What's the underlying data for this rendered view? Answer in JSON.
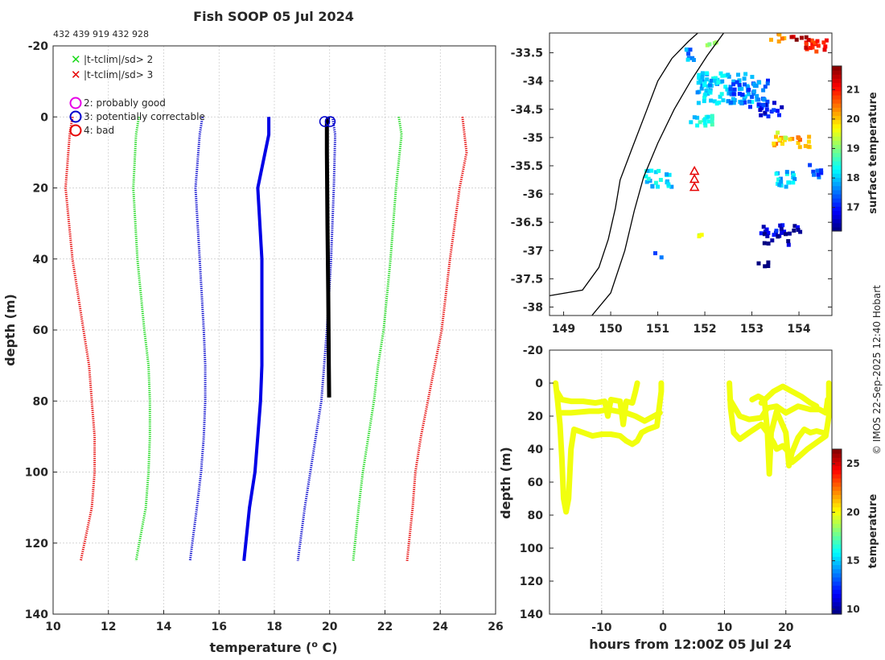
{
  "header": {
    "title": "Fish SOOP 05 Jul 2024",
    "ids": "432 439 919 432 928"
  },
  "credit": "© IMOS 22-Sep-2025 12:40 Hobart",
  "legend": {
    "flags": [
      {
        "label": "|t-tclim|/sd> 2",
        "color": "#19d919"
      },
      {
        "label": "|t-tclim|/sd> 3",
        "color": "#e60000"
      }
    ],
    "qc": [
      {
        "label": "2: probably good",
        "color": "#e600e6"
      },
      {
        "label": "3: potentially correctable",
        "color": "#0000cc"
      },
      {
        "label": "4: bad",
        "color": "#e60000"
      }
    ]
  },
  "chart_data": [
    {
      "type": "line",
      "name": "profile",
      "xlabel": "temperature (",
      "xlabel_sup": "o",
      "xlabel_tail": " C)",
      "ylabel": "depth (m)",
      "xlim": [
        10,
        26
      ],
      "ylim": [
        -20,
        140
      ],
      "xticks": [
        10,
        12,
        14,
        16,
        18,
        20,
        22,
        24,
        26
      ],
      "yticks": [
        -20,
        0,
        20,
        40,
        60,
        80,
        100,
        120,
        140
      ],
      "series": [
        {
          "name": "clim -3sd",
          "color": "#e60000",
          "style": "dotted",
          "depth": [
            0,
            5,
            20,
            40,
            60,
            70,
            80,
            90,
            100,
            110,
            125
          ],
          "temp": [
            10.7,
            10.6,
            10.45,
            10.7,
            11.1,
            11.3,
            11.4,
            11.5,
            11.5,
            11.4,
            11.0
          ]
        },
        {
          "name": "clim -2sd",
          "color": "#19d919",
          "style": "dotted",
          "depth": [
            0,
            5,
            20,
            40,
            60,
            70,
            80,
            90,
            100,
            110,
            125
          ],
          "temp": [
            13.1,
            13.0,
            12.9,
            13.05,
            13.3,
            13.45,
            13.5,
            13.5,
            13.45,
            13.35,
            13.0
          ]
        },
        {
          "name": "clim -1sd",
          "color": "#0000cc",
          "style": "dotted",
          "depth": [
            0,
            5,
            20,
            40,
            60,
            70,
            80,
            90,
            100,
            110,
            125
          ],
          "temp": [
            15.4,
            15.3,
            15.15,
            15.3,
            15.45,
            15.5,
            15.5,
            15.45,
            15.35,
            15.2,
            14.95
          ]
        },
        {
          "name": "climatology",
          "color": "#0000e6",
          "style": "solid",
          "depth": [
            0,
            5,
            20,
            40,
            60,
            70,
            80,
            90,
            100,
            110,
            125
          ],
          "temp": [
            17.8,
            17.8,
            17.4,
            17.55,
            17.55,
            17.55,
            17.5,
            17.4,
            17.3,
            17.1,
            16.9
          ]
        },
        {
          "name": "clim +1sd",
          "color": "#0000cc",
          "style": "dotted",
          "depth": [
            0,
            5,
            20,
            40,
            60,
            70,
            80,
            90,
            100,
            110,
            125
          ],
          "temp": [
            20.1,
            20.2,
            20.15,
            20.05,
            19.9,
            19.8,
            19.7,
            19.5,
            19.3,
            19.1,
            18.85
          ]
        },
        {
          "name": "clim +2sd",
          "color": "#19d919",
          "style": "dotted",
          "depth": [
            0,
            5,
            20,
            40,
            60,
            70,
            80,
            90,
            100,
            110,
            125
          ],
          "temp": [
            22.5,
            22.6,
            22.4,
            22.2,
            21.95,
            21.75,
            21.6,
            21.4,
            21.2,
            21.05,
            20.85
          ]
        },
        {
          "name": "clim +3sd",
          "color": "#e60000",
          "style": "dotted",
          "depth": [
            0,
            10,
            20,
            40,
            60,
            70,
            80,
            90,
            100,
            110,
            125
          ],
          "temp": [
            24.8,
            24.95,
            24.7,
            24.35,
            24.05,
            23.8,
            23.55,
            23.3,
            23.1,
            23.0,
            22.8
          ]
        },
        {
          "name": "observed",
          "color": "#000000",
          "style": "solid",
          "depth": [
            0,
            2,
            10,
            30,
            50,
            70,
            79
          ],
          "temp": [
            19.95,
            19.9,
            19.9,
            19.92,
            19.95,
            19.97,
            19.98
          ]
        }
      ],
      "qc_markers": [
        {
          "temp": 19.82,
          "depth": 1.3,
          "flag": 3
        },
        {
          "temp": 20.02,
          "depth": 1.3,
          "flag": 3
        }
      ]
    },
    {
      "type": "heatmap",
      "name": "map",
      "xlim": [
        148.7,
        154.7
      ],
      "ylim": [
        -38.15,
        -33.15
      ],
      "xticks": [
        149,
        150,
        151,
        152,
        153,
        154
      ],
      "yticks": [
        -33.5,
        -34,
        -34.5,
        -35,
        -35.5,
        -36,
        -36.5,
        -37,
        -37.5,
        -38
      ],
      "colorbar": {
        "label": "surface temperature",
        "min": 16.2,
        "max": 21.8,
        "ticks": [
          17,
          18,
          19,
          20,
          21
        ]
      },
      "station": {
        "lon": 151.78,
        "lat": -35.75
      },
      "coastline": [
        [
          148.7,
          -37.8
        ],
        [
          149.4,
          -37.7
        ],
        [
          149.75,
          -37.3
        ],
        [
          149.95,
          -36.8
        ],
        [
          150.1,
          -36.25
        ],
        [
          150.2,
          -35.75
        ],
        [
          150.45,
          -35.2
        ],
        [
          150.75,
          -34.55
        ],
        [
          151.0,
          -34.0
        ],
        [
          151.3,
          -33.6
        ],
        [
          151.65,
          -33.3
        ],
        [
          151.85,
          -33.15
        ]
      ],
      "contour": [
        [
          149.6,
          -38.15
        ],
        [
          150.0,
          -37.75
        ],
        [
          150.3,
          -37.0
        ],
        [
          150.5,
          -36.3
        ],
        [
          150.7,
          -35.7
        ],
        [
          151.0,
          -35.1
        ],
        [
          151.35,
          -34.5
        ],
        [
          151.7,
          -34.0
        ],
        [
          152.05,
          -33.55
        ],
        [
          152.4,
          -33.15
        ]
      ],
      "sst_patches": [
        {
          "lon": 152.4,
          "lat": -34.1,
          "w": 1.2,
          "h": 0.55,
          "temp": 18.0
        },
        {
          "lon": 152.9,
          "lat": -34.2,
          "w": 0.8,
          "h": 0.5,
          "temp": 17.5
        },
        {
          "lon": 153.35,
          "lat": -34.5,
          "w": 0.5,
          "h": 0.3,
          "temp": 16.9
        },
        {
          "lon": 151.9,
          "lat": -34.7,
          "w": 0.5,
          "h": 0.25,
          "temp": 18.3
        },
        {
          "lon": 153.8,
          "lat": -35.05,
          "w": 0.8,
          "h": 0.2,
          "temp": 20.2
        },
        {
          "lon": 153.55,
          "lat": -34.95,
          "w": 0.3,
          "h": 0.15,
          "temp": 19.6
        },
        {
          "lon": 151.0,
          "lat": -35.7,
          "w": 0.6,
          "h": 0.3,
          "temp": 18.1
        },
        {
          "lon": 153.7,
          "lat": -35.7,
          "w": 0.5,
          "h": 0.3,
          "temp": 18.0
        },
        {
          "lon": 154.3,
          "lat": -35.55,
          "w": 0.3,
          "h": 0.25,
          "temp": 17.5
        },
        {
          "lon": 153.4,
          "lat": -36.6,
          "w": 0.5,
          "h": 0.2,
          "temp": 16.8
        },
        {
          "lon": 153.5,
          "lat": -36.75,
          "w": 0.55,
          "h": 0.25,
          "temp": 16.3
        },
        {
          "lon": 154.0,
          "lat": -36.6,
          "w": 0.3,
          "h": 0.15,
          "temp": 16.5
        },
        {
          "lon": 151.8,
          "lat": -36.7,
          "w": 0.2,
          "h": 0.1,
          "temp": 19.5
        },
        {
          "lon": 150.95,
          "lat": -37.05,
          "w": 0.3,
          "h": 0.1,
          "temp": 17.3
        },
        {
          "lon": 153.3,
          "lat": -37.2,
          "w": 0.4,
          "h": 0.1,
          "temp": 16.2
        },
        {
          "lon": 153.95,
          "lat": -33.2,
          "w": 0.4,
          "h": 0.1,
          "temp": 21.5
        },
        {
          "lon": 154.3,
          "lat": -33.35,
          "w": 0.5,
          "h": 0.3,
          "temp": 21.0
        },
        {
          "lon": 153.5,
          "lat": -33.2,
          "w": 0.3,
          "h": 0.15,
          "temp": 20.5
        },
        {
          "lon": 152.2,
          "lat": -33.3,
          "w": 0.4,
          "h": 0.1,
          "temp": 19.2
        },
        {
          "lon": 151.7,
          "lat": -33.5,
          "w": 0.3,
          "h": 0.2,
          "temp": 17.7
        }
      ]
    },
    {
      "type": "scatter",
      "name": "timeseries",
      "xlabel": "hours from 12:00Z 05 Jul 24",
      "ylabel": "depth (m)",
      "xlim": [
        -18.5,
        27.5
      ],
      "ylim": [
        -20,
        140
      ],
      "xticks": [
        -10,
        0,
        10,
        20
      ],
      "yticks": [
        -20,
        0,
        20,
        40,
        60,
        80,
        100,
        120,
        140
      ],
      "colorbar": {
        "label": "temperature",
        "min": 9.5,
        "max": 26.5,
        "ticks": [
          10,
          15,
          20,
          25
        ]
      },
      "point_temp": 19.9,
      "tracks": [
        [
          [
            -17.5,
            0
          ],
          [
            -17.2,
            10
          ],
          [
            -16.8,
            25
          ],
          [
            -16.5,
            45
          ],
          [
            -16.2,
            70
          ],
          [
            -15.8,
            78
          ],
          [
            -15.4,
            70
          ],
          [
            -15.0,
            40
          ],
          [
            -14.5,
            28
          ],
          [
            -13.0,
            30
          ],
          [
            -11.5,
            32
          ],
          [
            -10.0,
            31
          ],
          [
            -8.5,
            31
          ],
          [
            -7.0,
            32
          ],
          [
            -6.0,
            35
          ],
          [
            -5.0,
            37
          ],
          [
            -4.2,
            35
          ],
          [
            -3.5,
            30
          ],
          [
            -2.5,
            28
          ],
          [
            -1.0,
            26
          ],
          [
            -0.3,
            5
          ],
          [
            -0.3,
            0
          ]
        ],
        [
          [
            -17.3,
            5
          ],
          [
            -16.5,
            10
          ],
          [
            -15.0,
            11
          ],
          [
            -13.0,
            11
          ],
          [
            -11.0,
            12
          ],
          [
            -9.5,
            11
          ],
          [
            -9.0,
            20
          ],
          [
            -8.5,
            10
          ],
          [
            -7.0,
            11
          ],
          [
            -6.5,
            25
          ],
          [
            -6.0,
            11
          ],
          [
            -5.0,
            12
          ],
          [
            -4.5,
            5
          ],
          [
            -4.2,
            0
          ]
        ],
        [
          [
            -16.5,
            18
          ],
          [
            -15.0,
            18
          ],
          [
            -12.0,
            17
          ],
          [
            -10.5,
            17
          ],
          [
            -9.0,
            16
          ],
          [
            -7.5,
            17
          ],
          [
            -6.0,
            18
          ],
          [
            -4.5,
            20
          ],
          [
            -3.0,
            23
          ],
          [
            -1.5,
            20
          ],
          [
            -0.5,
            18
          ]
        ],
        [
          [
            10.8,
            0
          ],
          [
            11.0,
            15
          ],
          [
            11.5,
            30
          ],
          [
            12.5,
            34
          ],
          [
            14.0,
            30
          ],
          [
            16.0,
            25
          ],
          [
            17.0,
            30
          ],
          [
            18.0,
            36
          ],
          [
            18.5,
            40
          ],
          [
            19.5,
            38
          ],
          [
            20.5,
            42
          ],
          [
            21.0,
            48
          ],
          [
            22.0,
            45
          ],
          [
            23.5,
            40
          ],
          [
            25.0,
            36
          ],
          [
            26.5,
            32
          ],
          [
            27.0,
            20
          ],
          [
            27.0,
            0
          ]
        ],
        [
          [
            10.9,
            10
          ],
          [
            12.5,
            20
          ],
          [
            14.0,
            22
          ],
          [
            16.0,
            21
          ],
          [
            17.0,
            15
          ],
          [
            18.5,
            14
          ],
          [
            20.0,
            18
          ],
          [
            22.0,
            14
          ],
          [
            24.0,
            16
          ],
          [
            25.5,
            16
          ],
          [
            26.5,
            18
          ],
          [
            26.8,
            10
          ]
        ],
        [
          [
            14.5,
            10
          ],
          [
            15.5,
            8
          ],
          [
            16.5,
            10
          ],
          [
            17.0,
            30
          ],
          [
            17.3,
            55
          ],
          [
            17.6,
            30
          ],
          [
            18.5,
            17
          ],
          [
            20.0,
            30
          ],
          [
            20.5,
            50
          ],
          [
            21.0,
            42
          ],
          [
            22.0,
            33
          ],
          [
            23.0,
            28
          ],
          [
            24.0,
            30
          ],
          [
            25.0,
            29
          ],
          [
            26.0,
            30
          ]
        ],
        [
          [
            16.0,
            12
          ],
          [
            18.0,
            5
          ],
          [
            19.5,
            2
          ],
          [
            21.0,
            5
          ],
          [
            22.5,
            8
          ],
          [
            24.0,
            12
          ],
          [
            25.0,
            14
          ]
        ]
      ]
    }
  ]
}
